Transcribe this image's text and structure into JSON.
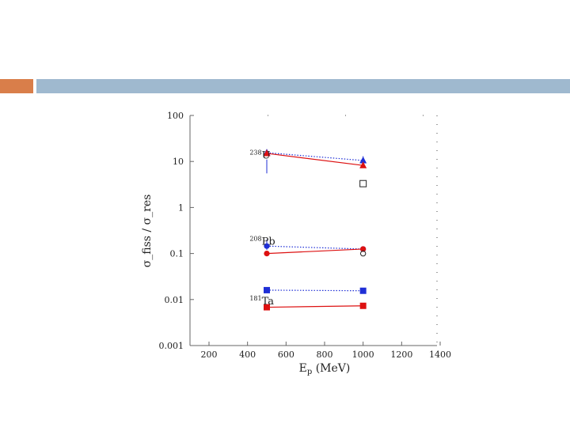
{
  "slide": {
    "accent_color": "#D97E4A",
    "bar_color": "#9FB9CF"
  },
  "chart_data": {
    "type": "scatter",
    "title": "",
    "xlabel": "E_p (MeV)",
    "ylabel": "σ_fiss / σ_res",
    "xlim": [
      100,
      1400
    ],
    "ylim": [
      0.001,
      100
    ],
    "yscale": "log",
    "grid": false,
    "x_ticks": [
      200,
      400,
      600,
      800,
      1000,
      1200,
      1400
    ],
    "y_ticks": [
      {
        "value": 100,
        "label": "100"
      },
      {
        "value": 10,
        "label": "10"
      },
      {
        "value": 1,
        "label": "1"
      },
      {
        "value": 0.1,
        "label": "0.1"
      },
      {
        "value": 0.01,
        "label": "0.01"
      },
      {
        "value": 0.001,
        "label": "0.001"
      }
    ],
    "annotations": [
      {
        "mass": "238",
        "symbol": "U",
        "x": 300,
        "y": 14
      },
      {
        "mass": "208",
        "symbol": "Pb",
        "x": 300,
        "y": 0.19
      },
      {
        "mass": "181",
        "symbol": "Ta",
        "x": 300,
        "y": 0.0095
      }
    ],
    "series": [
      {
        "color": "#1f2fd6",
        "line": "dotted",
        "marker": "triangle",
        "points": [
          {
            "x": 500,
            "y": 15.5,
            "err": [
              5.5,
              11
            ]
          },
          {
            "x": 1000,
            "y": 10.5,
            "err": [
              8.5,
              13
            ]
          }
        ]
      },
      {
        "color": "#dd1111",
        "line": "solid",
        "marker": "triangle",
        "points": [
          {
            "x": 500,
            "y": 15
          },
          {
            "x": 1000,
            "y": 8.2
          }
        ]
      },
      {
        "color": "#1f2fd6",
        "line": "dotted",
        "marker": "circle",
        "points": [
          {
            "x": 500,
            "y": 0.145,
            "err": [
              0.12,
              0.2
            ]
          },
          {
            "x": 1000,
            "y": 0.125
          }
        ]
      },
      {
        "color": "#dd1111",
        "line": "solid",
        "marker": "circle",
        "points": [
          {
            "x": 500,
            "y": 0.1
          },
          {
            "x": 1000,
            "y": 0.125
          }
        ]
      },
      {
        "color": "#1f2fd6",
        "line": "dotted",
        "marker": "square",
        "points": [
          {
            "x": 500,
            "y": 0.016
          },
          {
            "x": 1000,
            "y": 0.0155
          }
        ]
      },
      {
        "color": "#dd1111",
        "line": "solid",
        "marker": "square",
        "points": [
          {
            "x": 500,
            "y": 0.0068
          },
          {
            "x": 1000,
            "y": 0.0073
          }
        ]
      },
      {
        "color": "#222222",
        "line": "none",
        "marker": "open-square",
        "points": [
          {
            "x": 1000,
            "y": 3.3
          }
        ]
      },
      {
        "color": "#222222",
        "line": "none",
        "marker": "open-circle",
        "points": [
          {
            "x": 1000,
            "y": 0.1
          }
        ]
      }
    ]
  }
}
